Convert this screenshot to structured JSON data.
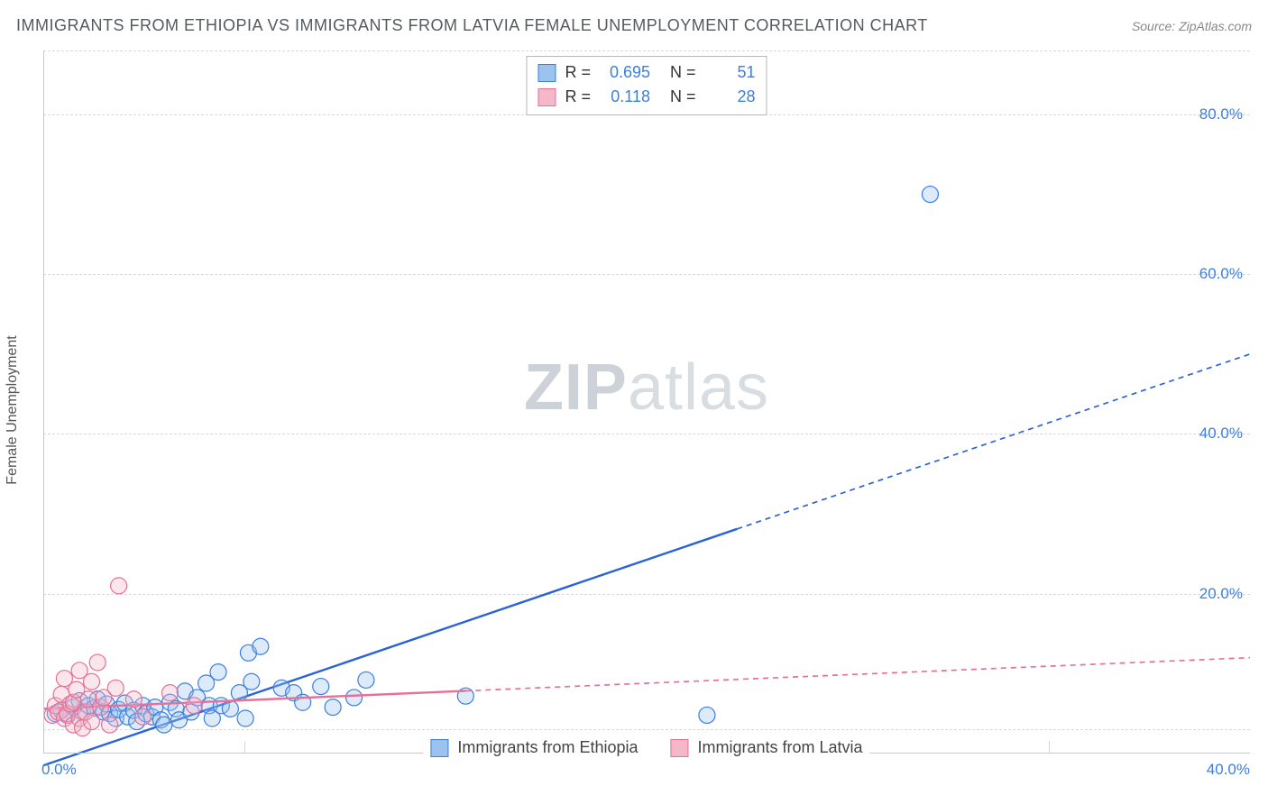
{
  "title": "IMMIGRANTS FROM ETHIOPIA VS IMMIGRANTS FROM LATVIA FEMALE UNEMPLOYMENT CORRELATION CHART",
  "source": "Source: ZipAtlas.com",
  "y_axis_label": "Female Unemployment",
  "watermark": {
    "bold": "ZIP",
    "rest": "atlas"
  },
  "chart": {
    "type": "scatter",
    "xlim": [
      0,
      40
    ],
    "ylim": [
      0,
      88
    ],
    "x_ticks": [
      0,
      40
    ],
    "x_tick_labels": [
      "0.0%",
      "40.0%"
    ],
    "x_minor_ticks": [
      6.67,
      13.33,
      20,
      26.67,
      33.33
    ],
    "y_ticks": [
      20,
      40,
      60,
      80
    ],
    "y_tick_labels": [
      "20.0%",
      "40.0%",
      "60.0%",
      "80.0%"
    ],
    "y_minor_dash": [
      3,
      20,
      40,
      60,
      80,
      88
    ],
    "background_color": "#ffffff",
    "grid_color": "#d8d8d8",
    "axis_color": "#c8c8c8",
    "tick_label_color": "#3b7fe0",
    "tick_label_fontsize": 17,
    "title_color": "#555a60",
    "title_fontsize": 18,
    "marker_radius": 9,
    "marker_stroke_width": 1.2,
    "marker_fill_opacity": 0.35,
    "trend_line_width": 2.4,
    "trend_dash_pattern": "6,5",
    "series": [
      {
        "name": "Immigrants from Ethiopia",
        "fill": "#9cc3ee",
        "stroke": "#3b7fe0",
        "trend_color": "#2a62d8",
        "R": "0.695",
        "N": "51",
        "trend": {
          "x1": 0,
          "y1": -1.5,
          "x2": 40,
          "y2": 50,
          "x_obs_max": 23
        },
        "points": [
          [
            0.4,
            5.0
          ],
          [
            0.6,
            5.4
          ],
          [
            0.8,
            4.8
          ],
          [
            1.0,
            5.8
          ],
          [
            1.2,
            6.6
          ],
          [
            1.3,
            5.2
          ],
          [
            1.5,
            6.0
          ],
          [
            1.7,
            5.7
          ],
          [
            1.8,
            6.8
          ],
          [
            2.0,
            5.2
          ],
          [
            2.1,
            6.2
          ],
          [
            2.2,
            5.0
          ],
          [
            2.4,
            4.4
          ],
          [
            2.5,
            5.5
          ],
          [
            2.7,
            6.3
          ],
          [
            2.8,
            4.6
          ],
          [
            3.0,
            5.4
          ],
          [
            3.1,
            4.0
          ],
          [
            3.3,
            6.0
          ],
          [
            3.4,
            5.0
          ],
          [
            3.6,
            4.6
          ],
          [
            3.7,
            5.8
          ],
          [
            3.9,
            4.2
          ],
          [
            4.0,
            3.6
          ],
          [
            4.2,
            6.4
          ],
          [
            4.4,
            5.6
          ],
          [
            4.5,
            4.2
          ],
          [
            4.7,
            7.8
          ],
          [
            4.9,
            5.2
          ],
          [
            5.1,
            7.0
          ],
          [
            5.4,
            8.8
          ],
          [
            5.5,
            6.0
          ],
          [
            5.6,
            4.4
          ],
          [
            5.8,
            10.2
          ],
          [
            5.9,
            6.0
          ],
          [
            6.2,
            5.6
          ],
          [
            6.5,
            7.6
          ],
          [
            6.7,
            4.4
          ],
          [
            6.8,
            12.6
          ],
          [
            6.9,
            9.0
          ],
          [
            7.2,
            13.4
          ],
          [
            7.9,
            8.2
          ],
          [
            8.3,
            7.6
          ],
          [
            8.6,
            6.4
          ],
          [
            9.2,
            8.4
          ],
          [
            9.6,
            5.8
          ],
          [
            10.3,
            7.0
          ],
          [
            10.7,
            9.2
          ],
          [
            14.0,
            7.2
          ],
          [
            22.0,
            4.8
          ],
          [
            29.4,
            70.0
          ]
        ]
      },
      {
        "name": "Immigrants from Latvia",
        "fill": "#f4b8c8",
        "stroke": "#e86f95",
        "trend_color": "#e86f95",
        "R": "0.118",
        "N": "28",
        "trend": {
          "x1": 0,
          "y1": 5.6,
          "x2": 40,
          "y2": 12.0,
          "x_obs_max": 14
        },
        "points": [
          [
            0.3,
            4.8
          ],
          [
            0.4,
            6.0
          ],
          [
            0.5,
            5.2
          ],
          [
            0.6,
            7.4
          ],
          [
            0.7,
            4.4
          ],
          [
            0.7,
            9.4
          ],
          [
            0.8,
            5.0
          ],
          [
            0.9,
            6.2
          ],
          [
            1.0,
            3.6
          ],
          [
            1.0,
            6.4
          ],
          [
            1.1,
            8.0
          ],
          [
            1.2,
            4.4
          ],
          [
            1.2,
            10.4
          ],
          [
            1.3,
            3.2
          ],
          [
            1.4,
            5.2
          ],
          [
            1.5,
            6.8
          ],
          [
            1.6,
            4.0
          ],
          [
            1.6,
            9.0
          ],
          [
            1.8,
            11.4
          ],
          [
            1.9,
            5.8
          ],
          [
            2.0,
            7.0
          ],
          [
            2.2,
            3.6
          ],
          [
            2.4,
            8.2
          ],
          [
            2.5,
            21.0
          ],
          [
            3.0,
            6.8
          ],
          [
            3.3,
            4.6
          ],
          [
            4.2,
            7.6
          ],
          [
            5.0,
            6.0
          ]
        ]
      }
    ]
  },
  "stats_legend": {
    "rows": [
      {
        "swatch_fill": "#9cc3ee",
        "swatch_stroke": "#3b7fe0",
        "R": "0.695",
        "N": "51"
      },
      {
        "swatch_fill": "#f4b8c8",
        "swatch_stroke": "#e86f95",
        "R": "0.118",
        "N": "28"
      }
    ],
    "labels": {
      "R": "R  =",
      "N": "N  ="
    }
  },
  "series_legend": [
    {
      "swatch_fill": "#9cc3ee",
      "swatch_stroke": "#3b7fe0",
      "label": "Immigrants from Ethiopia"
    },
    {
      "swatch_fill": "#f4b8c8",
      "swatch_stroke": "#e86f95",
      "label": "Immigrants from Latvia"
    }
  ]
}
